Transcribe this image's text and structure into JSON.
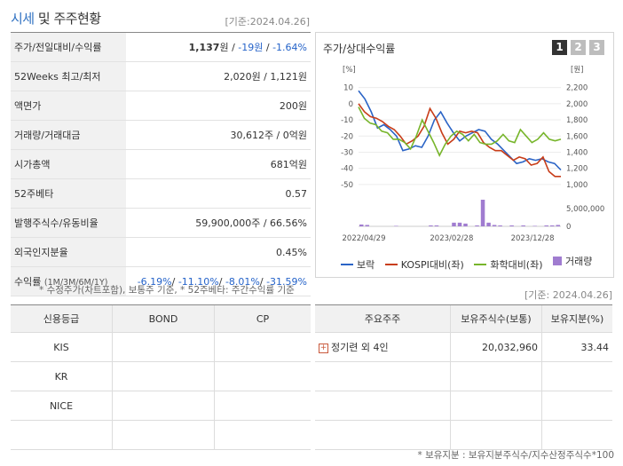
{
  "header": {
    "title_hl": "시세",
    "title_rest": " 및 주주현황",
    "base_date": "[기준:2024.04.26]"
  },
  "stock_rows": [
    {
      "label": "주가/전일대비/수익률"
    },
    {
      "label": "52Weeks 최고/최저",
      "value": "2,020원 / 1,121원"
    },
    {
      "label": "액면가",
      "value": "200원"
    },
    {
      "label": "거래량/거래대금",
      "value": "30,612주 / 0억원"
    },
    {
      "label": "시가총액",
      "value": "681억원"
    },
    {
      "label": "52주베타",
      "value": "0.57"
    },
    {
      "label": "발행주식수/유동비율",
      "value": "59,900,000주 / 66.56%"
    },
    {
      "label": "외국인지분율",
      "value": "0.45%"
    },
    {
      "label": "수익률",
      "label_sub": "(1M/3M/6M/1Y)"
    }
  ],
  "price_row": {
    "price": "1,137",
    "price_unit": "원",
    "change": "-19원",
    "rate": "-1.64%"
  },
  "returns_row": {
    "m1": "-6.19%",
    "m3": "-11.10%",
    "m6": "-8.01%",
    "y1": "-31.59%"
  },
  "stock_note": "* 수정주가(차트포함), 보통주 기준, * 52주베타: 주간수익률 기준",
  "chart_panel": {
    "title": "주가/상대수익률",
    "tabs": [
      "1",
      "2",
      "3"
    ],
    "left_unit": "[%]",
    "right_unit": "[원]",
    "legend": [
      "보락",
      "KOSPI대비(좌)",
      "화학대비(좌)",
      "거래량"
    ]
  },
  "chart_data": {
    "type": "line",
    "x_ticks": [
      "2022/04/29",
      "2023/02/28",
      "2023/12/28"
    ],
    "y_left_ticks": [
      "10",
      "0",
      "-10",
      "-20",
      "-30",
      "-40",
      "-50"
    ],
    "y_left_lim": [
      -55,
      12
    ],
    "y_right_ticks": [
      "2,200",
      "2,000",
      "1,800",
      "1,600",
      "1,400",
      "1,200",
      "1,000"
    ],
    "y_right_lim": [
      900,
      2240
    ],
    "y_vol_ticks": [
      "5,000,000",
      "0"
    ],
    "series": [
      {
        "name": "보락",
        "color": "#2b64c6",
        "values": [
          8,
          3,
          -5,
          -15,
          -13,
          -16,
          -20,
          -29,
          -28,
          -26,
          -27,
          -20,
          -10,
          -5,
          -12,
          -18,
          -23,
          -20,
          -18,
          -16,
          -17,
          -22,
          -25,
          -29,
          -33,
          -37,
          -36,
          -34,
          -35,
          -34,
          -36,
          -37,
          -41
        ]
      },
      {
        "name": "KOSPI대비(좌)",
        "color": "#c83d19",
        "values": [
          0,
          -5,
          -8,
          -9,
          -11,
          -14,
          -16,
          -20,
          -25,
          -23,
          -20,
          -14,
          -3,
          -9,
          -18,
          -25,
          -22,
          -17,
          -18,
          -17,
          -18,
          -24,
          -27,
          -29,
          -29,
          -32,
          -35,
          -33,
          -34,
          -38,
          -37,
          -33,
          -42,
          -45,
          -45
        ]
      },
      {
        "name": "화학대비(좌)",
        "color": "#77b52b",
        "values": [
          -2,
          -9,
          -12,
          -13,
          -17,
          -18,
          -22,
          -22,
          -24,
          -28,
          -20,
          -10,
          -17,
          -24,
          -32,
          -25,
          -20,
          -17,
          -19,
          -23,
          -19,
          -24,
          -25,
          -25,
          -23,
          -19,
          -23,
          -24,
          -16,
          -20,
          -24,
          -22,
          -18,
          -22,
          -23,
          -22
        ]
      }
    ],
    "volume": [
      0.2,
      0.15,
      0,
      0,
      0,
      0,
      0.05,
      0,
      0,
      0,
      0,
      0,
      0.1,
      0.1,
      0,
      0,
      0.4,
      0.4,
      0.3,
      0,
      0.1,
      0,
      0.4,
      0.15,
      0.1,
      0,
      0.1,
      0,
      0.1,
      0,
      0.05,
      0,
      0.1,
      0.1,
      0.15
    ],
    "volume_peak": 2.9,
    "volume_peak_index": 21,
    "grid": true,
    "legend_position": "bottom"
  },
  "credit_table": {
    "headers": [
      "신용등급",
      "BOND",
      "CP"
    ],
    "rows": [
      [
        "KIS",
        "",
        ""
      ],
      [
        "KR",
        "",
        ""
      ],
      [
        "NICE",
        "",
        ""
      ],
      [
        "",
        "",
        ""
      ]
    ]
  },
  "holder_table": {
    "base_date": "[기준: 2024.04.26]",
    "headers": [
      "주요주주",
      "보유주식수(보통)",
      "보유지분(%)"
    ],
    "rows": [
      {
        "name": "정기련 외 4인",
        "shares": "20,032,960",
        "pct": "33.44"
      }
    ],
    "note": "* 보유지분 : 보유지분주식수/지수산정주식수*100"
  }
}
